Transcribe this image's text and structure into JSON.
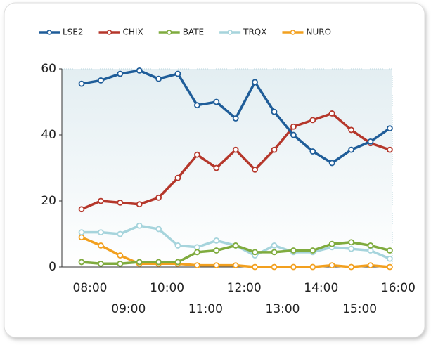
{
  "chart_data": {
    "type": "line",
    "categories": [
      "08:00",
      null,
      "09:00",
      null,
      "10:00",
      null,
      "11:00",
      null,
      "12:00",
      null,
      "13:00",
      null,
      "14:00",
      null,
      "15:00",
      null,
      "16:00"
    ],
    "series": [
      {
        "name": "LSE2",
        "color": "#1f5d99",
        "values": [
          55.5,
          56.5,
          58.5,
          59.5,
          57,
          58.5,
          49,
          50,
          45,
          56,
          47,
          40,
          35,
          31.5,
          35.5,
          38,
          42
        ]
      },
      {
        "name": "CHIX",
        "color": "#b5372b",
        "values": [
          17.5,
          20,
          19.5,
          19,
          21,
          27,
          34,
          30,
          35.5,
          29.5,
          35.5,
          42.5,
          44.5,
          46.5,
          41.5,
          37.5,
          35.5
        ]
      },
      {
        "name": "BATE",
        "color": "#7fab3e",
        "values": [
          1.5,
          1,
          1,
          1.5,
          1.5,
          1.5,
          4.5,
          5,
          6.5,
          4.5,
          4.5,
          5,
          5,
          7,
          7.5,
          6.5,
          5
        ]
      },
      {
        "name": "TRQX",
        "color": "#a6d4dc",
        "values": [
          10.5,
          10.5,
          10,
          12.5,
          11.5,
          6.5,
          6,
          8,
          6.5,
          3.5,
          6.5,
          4.5,
          4.5,
          6,
          5.5,
          5,
          2.5
        ]
      },
      {
        "name": "NURO",
        "color": "#f2a01f",
        "values": [
          9,
          6.5,
          3.5,
          1,
          1,
          1,
          0.5,
          0.5,
          0.5,
          0,
          0,
          0,
          0,
          0.5,
          0,
          0.5,
          0
        ]
      }
    ],
    "ylim": [
      0,
      60
    ],
    "yticks": [
      0,
      20,
      40,
      60
    ],
    "legend": "top"
  }
}
